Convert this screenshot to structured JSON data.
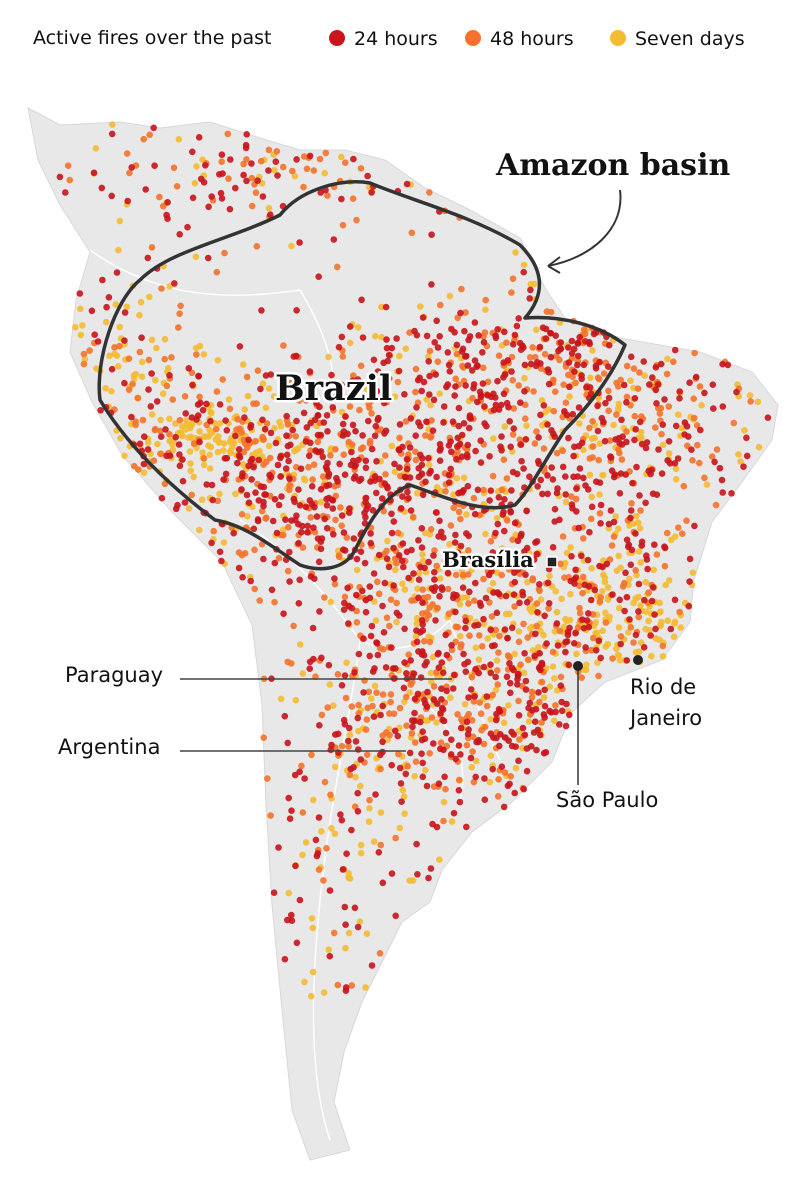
{
  "legend": {
    "title": "Active fires over the past",
    "items": [
      {
        "label": "24 hours",
        "color": "#c8141b"
      },
      {
        "label": "48 hours",
        "color": "#f4722b"
      },
      {
        "label": "Seven days",
        "color": "#f4bb33"
      }
    ]
  },
  "labels": {
    "amazon_basin": "Amazon basin",
    "brazil": "Brazil",
    "brasilia": "Brasília",
    "paraguay": "Paraguay",
    "argentina": "Argentina",
    "sao_paulo": "São Paulo",
    "rio_de_janeiro": [
      "Rio de",
      "Janeiro"
    ]
  }
}
